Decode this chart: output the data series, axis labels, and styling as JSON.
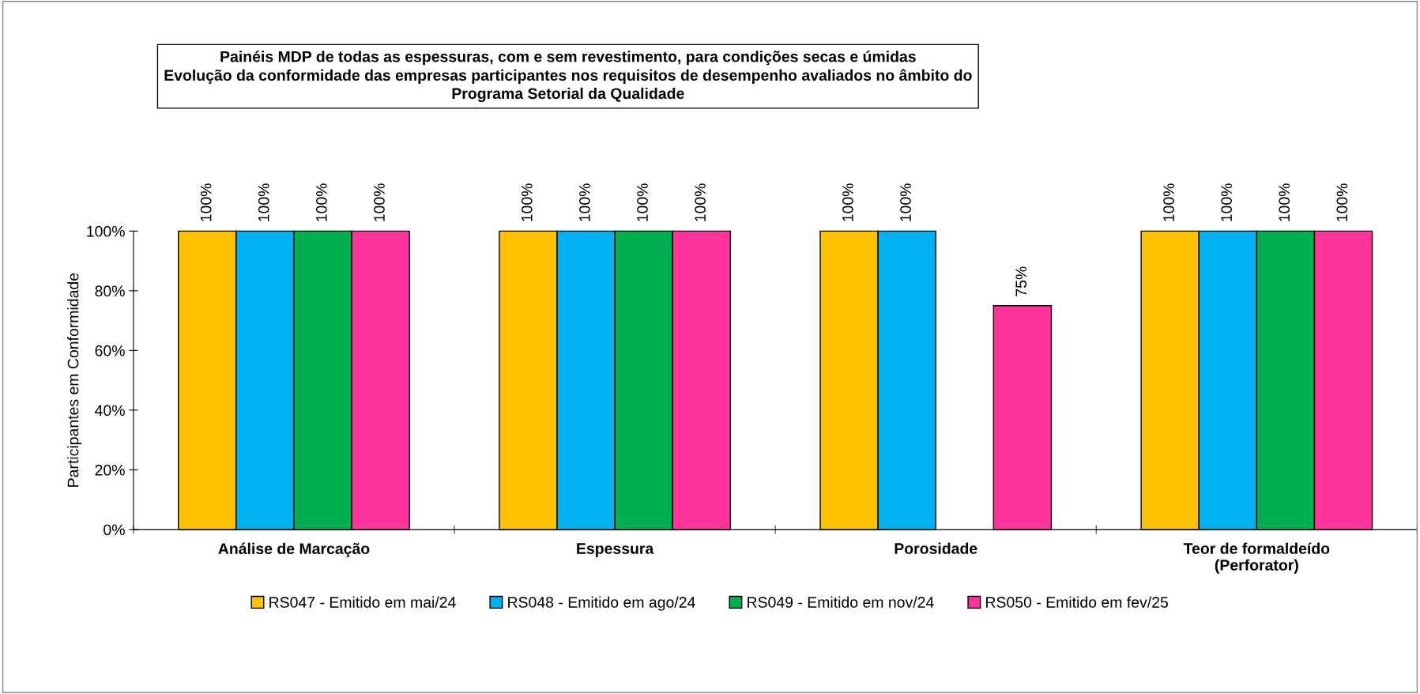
{
  "chart_data": {
    "type": "bar",
    "title": "Painéis MDP de todas as espessuras, com e sem revestimento, para condições secas e úmidas\nEvolução da conformidade das empresas participantes nos requisitos de desempenho avaliados no âmbito do\nPrograma Setorial da Qualidade",
    "ylabel": "Participantes em Conformidade",
    "categories": [
      "Análise de Marcação",
      "Espessura",
      "Porosidade",
      "Teor de formaldeído\n(Perforator)"
    ],
    "series": [
      {
        "name": "RS047 - Emitido em mai/24",
        "color": "#ffc000",
        "values": [
          100,
          100,
          100,
          100
        ],
        "value_labels": [
          "100%",
          "100%",
          "100%",
          "100%"
        ]
      },
      {
        "name": "RS048 - Emitido em ago/24",
        "color": "#00b0f0",
        "values": [
          100,
          100,
          100,
          100
        ],
        "value_labels": [
          "100%",
          "100%",
          "100%",
          "100%"
        ]
      },
      {
        "name": "RS049 - Emitido em nov/24",
        "color": "#00b050",
        "values": [
          100,
          100,
          null,
          100
        ],
        "value_labels": [
          "100%",
          "100%",
          null,
          "100%"
        ]
      },
      {
        "name": "RS050 - Emitido em fev/25",
        "color": "#ff3399",
        "values": [
          100,
          100,
          75,
          100
        ],
        "value_labels": [
          "100%",
          "100%",
          "75%",
          "100%"
        ]
      }
    ],
    "ylim": [
      0,
      100
    ],
    "yticks": [
      {
        "value": 0,
        "label": "0%"
      },
      {
        "value": 20,
        "label": "20%"
      },
      {
        "value": 40,
        "label": "40%"
      },
      {
        "value": 60,
        "label": "60%"
      },
      {
        "value": 80,
        "label": "80%"
      },
      {
        "value": 100,
        "label": "100%"
      }
    ],
    "grid": false,
    "legend": "bottom"
  }
}
